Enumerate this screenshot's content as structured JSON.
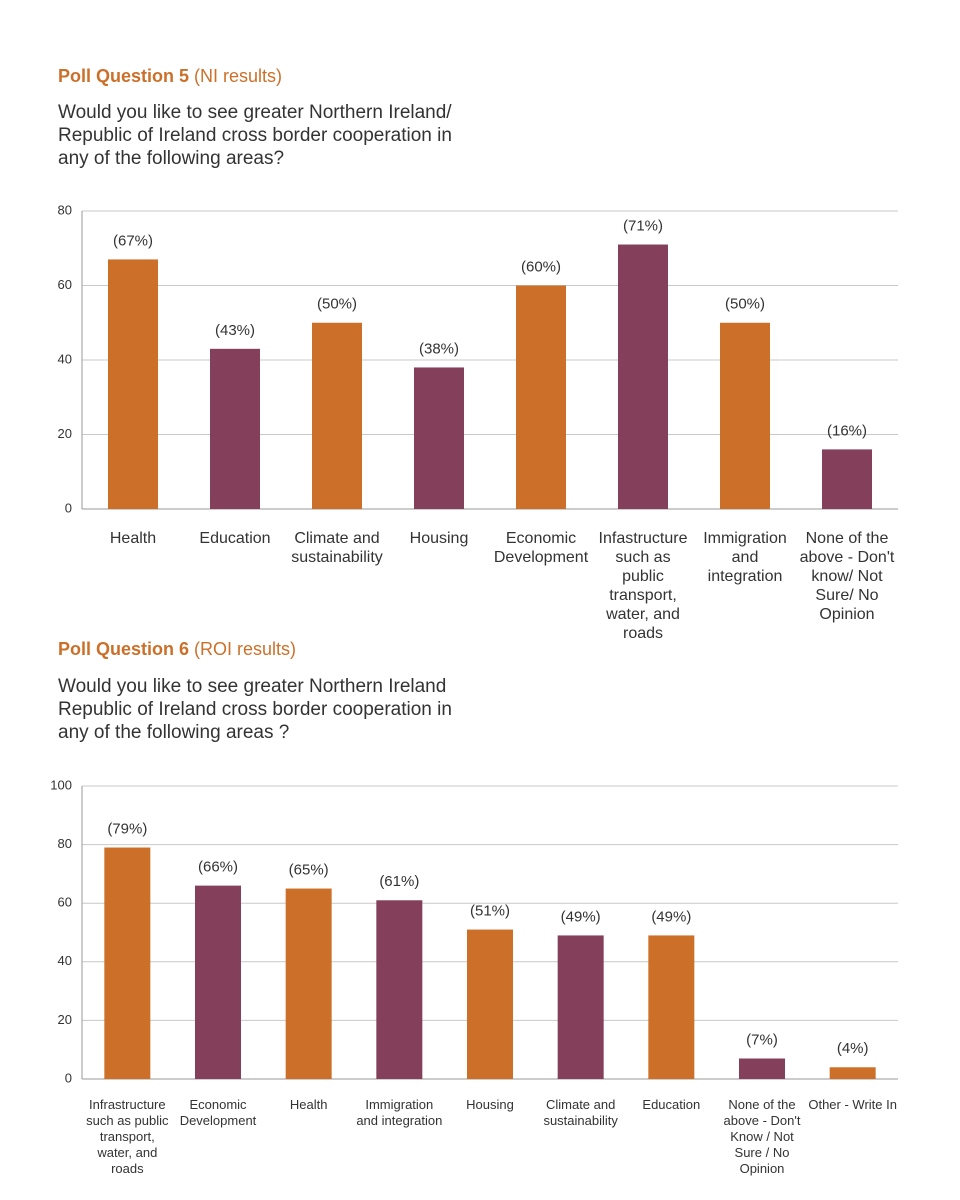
{
  "chart_data": [
    {
      "type": "bar",
      "title": "Poll Question 5",
      "title_note": "(NI results)",
      "question": "Would you like to see greater Northern Ireland/ Republic of Ireland cross border cooperation in any of the following areas?",
      "categories": [
        "Health",
        "Education",
        "Climate and sustainability",
        "Housing",
        "Economic Development",
        "Infastructure such as public transport, water, and roads",
        "Immigration and integration",
        "None of the above - Don't know/ Not Sure/ No Opinion"
      ],
      "values": [
        67,
        43,
        50,
        38,
        60,
        71,
        50,
        16
      ],
      "value_labels": [
        "(67%)",
        "(43%)",
        "(50%)",
        "(38%)",
        "(60%)",
        "(71%)",
        "(50%)",
        "(16%)"
      ],
      "colors": [
        "#cc7029",
        "#84405a",
        "#cc7029",
        "#84405a",
        "#cc7029",
        "#84405a",
        "#cc7029",
        "#84405a"
      ],
      "ylim": [
        0,
        80
      ],
      "yticks": [
        0,
        20,
        40,
        60,
        80
      ],
      "grid": true
    },
    {
      "type": "bar",
      "title": "Poll Question 6",
      "title_note": "(ROI results)",
      "question": "Would you like to see greater Northern Ireland Republic of Ireland cross border cooperation in any of the following areas ?",
      "categories": [
        "Infrastructure such as public transport, water, and roads",
        "Economic Development",
        "Health",
        "Immigration and integration",
        "Housing",
        "Climate and sustainability",
        "Education",
        "None of the above - Don't Know / Not Sure / No Opinion",
        "Other - Write In"
      ],
      "values": [
        79,
        66,
        65,
        61,
        51,
        49,
        49,
        7,
        4
      ],
      "value_labels": [
        "(79%)",
        "(66%)",
        "(65%)",
        "(61%)",
        "(51%)",
        "(49%)",
        "(49%)",
        "(7%)",
        "(4%)"
      ],
      "colors": [
        "#cc7029",
        "#84405a",
        "#cc7029",
        "#84405a",
        "#cc7029",
        "#84405a",
        "#cc7029",
        "#84405a",
        "#cc7029"
      ],
      "ylim": [
        0,
        100
      ],
      "yticks": [
        0,
        20,
        40,
        60,
        80,
        100
      ],
      "grid": true
    }
  ]
}
